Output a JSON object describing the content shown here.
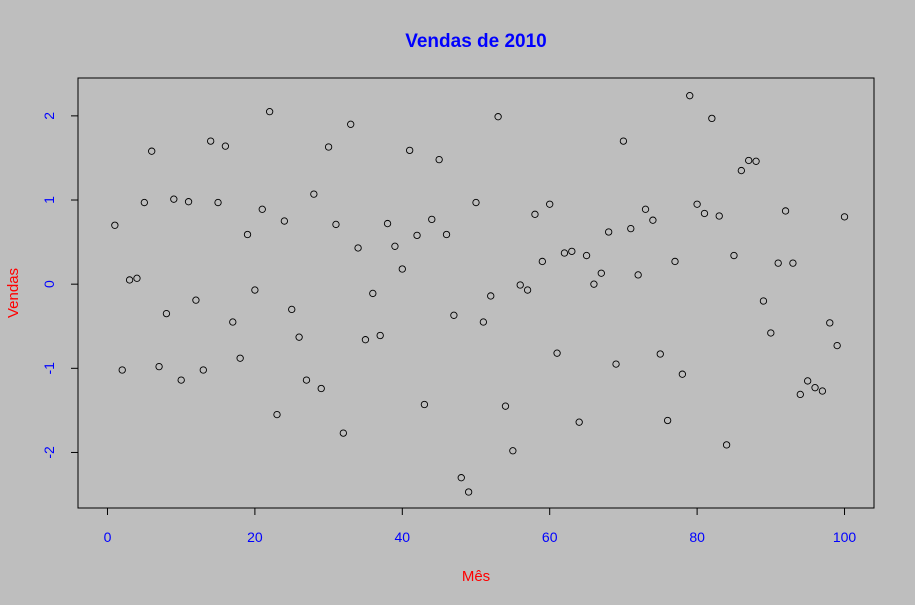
{
  "chart_data": {
    "type": "scatter",
    "title": "Vendas de 2010",
    "xlabel": "Mês",
    "ylabel": "Vendas",
    "xlim": [
      -4,
      104
    ],
    "ylim": [
      -2.66,
      2.45
    ],
    "xticks": [
      0,
      20,
      40,
      60,
      80,
      100
    ],
    "yticks": [
      -2,
      -1,
      0,
      1,
      2
    ],
    "grid": false,
    "colors": {
      "background": "#bebebe",
      "title": "#0000ff",
      "tick_labels": "#0000ff",
      "axis_labels": "#ff0000",
      "points": "#000000"
    },
    "series": [
      {
        "x": [
          1,
          2,
          3,
          4,
          5,
          6,
          7,
          8,
          9,
          10,
          11,
          12,
          13,
          14,
          15,
          16,
          17,
          18,
          19,
          20,
          21,
          22,
          23,
          24,
          25,
          26,
          27,
          28,
          29,
          30,
          31,
          32,
          33,
          34,
          35,
          36,
          37,
          38,
          39,
          40,
          41,
          42,
          43,
          44,
          45,
          46,
          47,
          48,
          49,
          50,
          51,
          52,
          53,
          54,
          55,
          56,
          57,
          58,
          59,
          60,
          61,
          62,
          63,
          64,
          65,
          66,
          67,
          68,
          69,
          70,
          71,
          72,
          73,
          74,
          75,
          76,
          77,
          78,
          79,
          80,
          81,
          82,
          83,
          84,
          85,
          86,
          87,
          88,
          89,
          90,
          91,
          92,
          93,
          94,
          95,
          96,
          97,
          98,
          99,
          100
        ],
        "y": [
          0.7,
          -1.02,
          0.05,
          0.07,
          0.97,
          1.58,
          -0.98,
          -0.35,
          1.01,
          -1.14,
          0.98,
          -0.19,
          -1.02,
          1.7,
          0.97,
          1.64,
          -0.45,
          -0.88,
          0.59,
          -0.07,
          0.89,
          2.05,
          -1.55,
          0.75,
          -0.3,
          -0.63,
          -1.14,
          1.07,
          -1.24,
          1.63,
          0.71,
          -1.77,
          1.9,
          0.43,
          -0.66,
          -0.11,
          -0.61,
          0.72,
          0.45,
          0.18,
          1.59,
          0.58,
          -1.43,
          0.77,
          1.48,
          0.59,
          -0.37,
          -2.3,
          -2.47,
          0.97,
          -0.45,
          -0.14,
          1.99,
          -1.45,
          -1.98,
          -0.01,
          -0.07,
          0.83,
          0.27,
          0.95,
          -0.82,
          0.37,
          0.39,
          -1.64,
          0.34,
          0.0,
          0.13,
          0.62,
          -0.95,
          1.7,
          0.66,
          0.11,
          0.89,
          0.76,
          -0.83,
          -1.62,
          0.27,
          -1.07,
          2.24,
          0.95,
          0.84,
          1.97,
          0.81,
          -1.91,
          0.34,
          1.35,
          1.47,
          1.46,
          -0.2,
          -0.58,
          0.25,
          0.87,
          0.25,
          -1.31,
          -1.15,
          -1.23,
          -1.27,
          -0.46,
          -0.73,
          0.8
        ]
      }
    ]
  }
}
